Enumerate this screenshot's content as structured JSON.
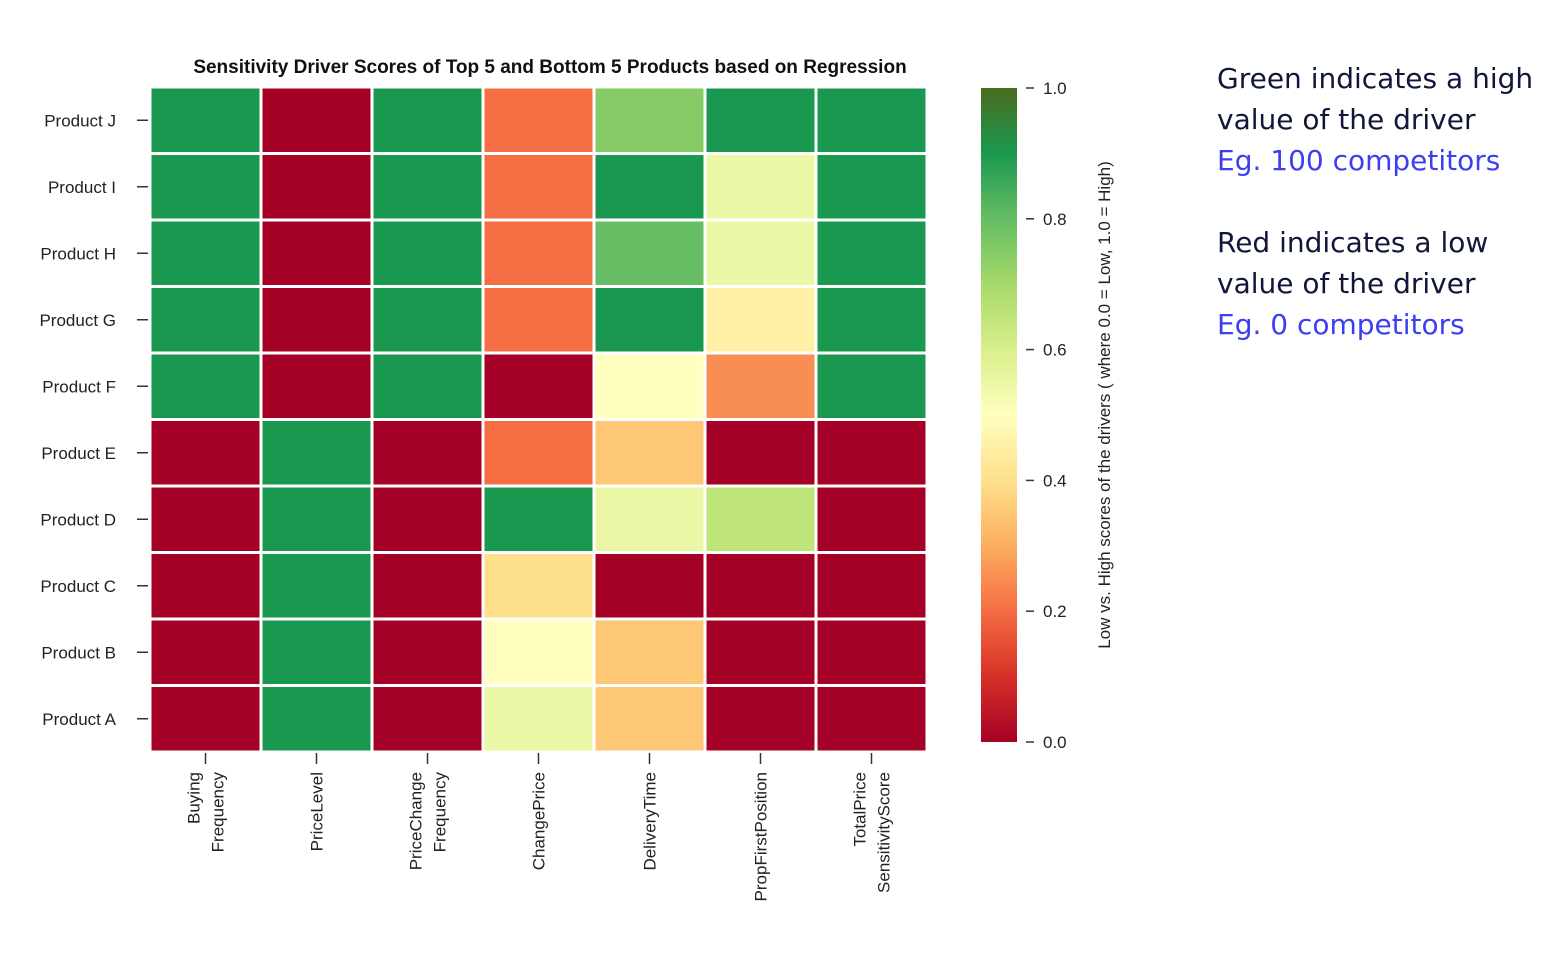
{
  "chart_data": {
    "type": "heatmap",
    "title": "Sensitivity Driver Scores of Top 5 and Bottom 5 Products based on Regression",
    "rows": [
      "Product J",
      "Product I",
      "Product H",
      "Product G",
      "Product F",
      "Product E",
      "Product D",
      "Product C",
      "Product B",
      "Product A"
    ],
    "columns": [
      [
        "Buying",
        "Frequency"
      ],
      [
        "PriceLevel"
      ],
      [
        "PriceChange",
        "Frequency"
      ],
      [
        "ChangePrice"
      ],
      [
        "DeliveryTime"
      ],
      [
        "PropFirstPosition"
      ],
      [
        "TotalPrice",
        "SensitivityScore"
      ]
    ],
    "values": [
      [
        0.9,
        0.0,
        0.9,
        0.2,
        0.75,
        0.9,
        0.9
      ],
      [
        0.9,
        0.0,
        0.9,
        0.2,
        0.9,
        0.55,
        0.9
      ],
      [
        0.9,
        0.0,
        0.9,
        0.2,
        0.8,
        0.55,
        0.9
      ],
      [
        0.9,
        0.0,
        0.9,
        0.2,
        0.9,
        0.45,
        0.9
      ],
      [
        0.9,
        0.0,
        0.9,
        0.0,
        0.5,
        0.25,
        0.9
      ],
      [
        0.0,
        0.9,
        0.0,
        0.2,
        0.35,
        0.0,
        0.0
      ],
      [
        0.0,
        0.9,
        0.0,
        0.9,
        0.55,
        0.65,
        0.0
      ],
      [
        0.0,
        0.9,
        0.0,
        0.4,
        0.0,
        0.0,
        0.0
      ],
      [
        0.0,
        0.9,
        0.0,
        0.5,
        0.35,
        0.0,
        0.0
      ],
      [
        0.0,
        0.9,
        0.0,
        0.55,
        0.35,
        0.0,
        0.0
      ]
    ],
    "colormap": "RdYlGn",
    "colorbar": {
      "range": [
        0.0,
        1.0
      ],
      "ticks": [
        "0.0",
        "0.2",
        "0.4",
        "0.6",
        "0.8",
        "1.0"
      ],
      "label": "Low vs. High scores of the drivers ( where 0.0 = Low, 1.0 = High)"
    }
  },
  "notes": {
    "green": {
      "line1": "Green indicates a high",
      "line2": "value of the driver",
      "example": "Eg. 100 competitors"
    },
    "red": {
      "line1": "Red indicates a low",
      "line2": "value of the driver",
      "example": "Eg. 0 competitors"
    }
  },
  "colors": {
    "note_text": "#10173a",
    "example_text": "#3b3ff0"
  }
}
